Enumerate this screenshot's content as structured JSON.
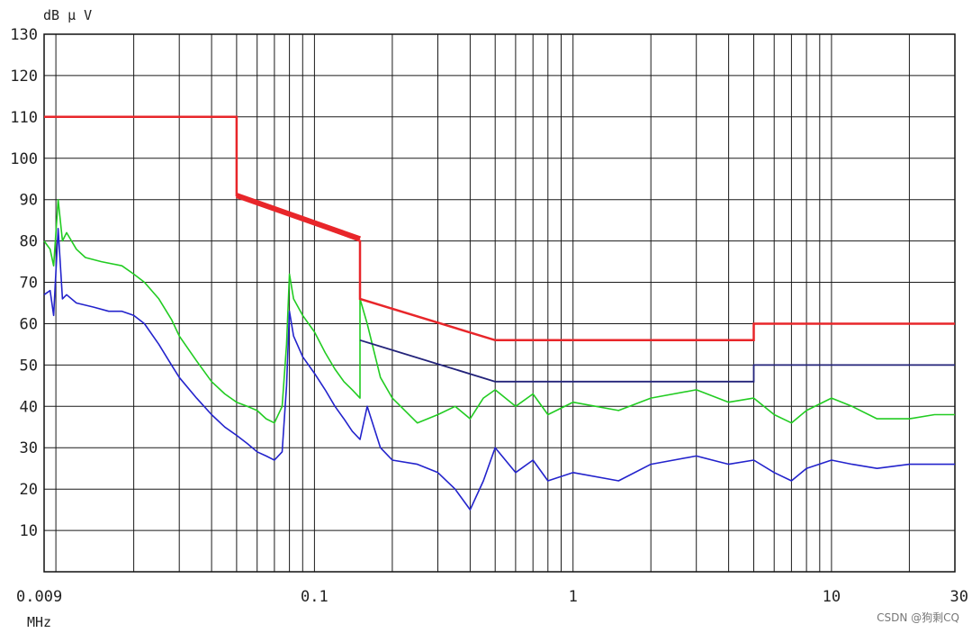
{
  "chart_data": {
    "type": "line",
    "title": "",
    "ylabel": "dB μ V",
    "xlabel": "MHz",
    "x_scale": "log",
    "xlim": [
      0.009,
      30
    ],
    "ylim": [
      0,
      130
    ],
    "y_ticks": [
      10,
      20,
      30,
      40,
      50,
      60,
      70,
      80,
      90,
      100,
      110,
      120,
      130
    ],
    "x_tick_labels": [
      {
        "value": 0.009,
        "label": "0.009"
      },
      {
        "value": 0.1,
        "label": "0.1"
      },
      {
        "value": 1,
        "label": "1"
      },
      {
        "value": 10,
        "label": "10"
      },
      {
        "value": 30,
        "label": "30"
      }
    ],
    "grid": true,
    "grid_x_values": [
      0.01,
      0.02,
      0.03,
      0.04,
      0.05,
      0.06,
      0.07,
      0.08,
      0.09,
      0.1,
      0.2,
      0.3,
      0.4,
      0.5,
      0.6,
      0.7,
      0.8,
      0.9,
      1,
      2,
      3,
      4,
      5,
      6,
      7,
      8,
      9,
      10,
      20,
      30
    ],
    "limit_lines": [
      {
        "color": "#e8262a",
        "width": 2.5,
        "points": [
          [
            0.009,
            110
          ],
          [
            0.05,
            110
          ],
          [
            0.05,
            91
          ],
          [
            0.15,
            80
          ],
          [
            0.15,
            66
          ],
          [
            0.5,
            56
          ],
          [
            5,
            56
          ],
          [
            5,
            60
          ],
          [
            30,
            60
          ]
        ]
      },
      {
        "color": "#e8262a",
        "width": 6,
        "points": [
          [
            0.05,
            91
          ],
          [
            0.15,
            80.5
          ]
        ]
      },
      {
        "color": "#23237a",
        "width": 1.8,
        "points": [
          [
            0.15,
            56
          ],
          [
            0.5,
            46
          ],
          [
            5,
            46
          ],
          [
            5,
            50
          ],
          [
            30,
            50
          ]
        ]
      }
    ],
    "series": [
      {
        "color": "#22cc22",
        "points": [
          [
            0.009,
            80
          ],
          [
            0.0095,
            78
          ],
          [
            0.0098,
            74
          ],
          [
            0.0102,
            90
          ],
          [
            0.0106,
            80
          ],
          [
            0.011,
            82
          ],
          [
            0.012,
            78
          ],
          [
            0.013,
            76
          ],
          [
            0.015,
            75
          ],
          [
            0.018,
            74
          ],
          [
            0.02,
            72
          ],
          [
            0.022,
            70
          ],
          [
            0.025,
            66
          ],
          [
            0.028,
            61
          ],
          [
            0.03,
            57
          ],
          [
            0.035,
            51
          ],
          [
            0.04,
            46
          ],
          [
            0.045,
            43
          ],
          [
            0.05,
            41
          ],
          [
            0.055,
            40
          ],
          [
            0.06,
            39
          ],
          [
            0.065,
            37
          ],
          [
            0.07,
            36
          ],
          [
            0.075,
            40
          ],
          [
            0.078,
            55
          ],
          [
            0.08,
            72
          ],
          [
            0.083,
            66
          ],
          [
            0.09,
            62
          ],
          [
            0.1,
            58
          ],
          [
            0.11,
            53
          ],
          [
            0.12,
            49
          ],
          [
            0.13,
            46
          ],
          [
            0.14,
            44
          ],
          [
            0.15,
            42
          ],
          [
            0.15,
            66
          ],
          [
            0.16,
            60
          ],
          [
            0.18,
            47
          ],
          [
            0.2,
            42
          ],
          [
            0.25,
            36
          ],
          [
            0.3,
            38
          ],
          [
            0.35,
            40
          ],
          [
            0.4,
            37
          ],
          [
            0.45,
            42
          ],
          [
            0.5,
            44
          ],
          [
            0.6,
            40
          ],
          [
            0.7,
            43
          ],
          [
            0.8,
            38
          ],
          [
            1,
            41
          ],
          [
            1.5,
            39
          ],
          [
            2,
            42
          ],
          [
            3,
            44
          ],
          [
            4,
            41
          ],
          [
            5,
            42
          ],
          [
            6,
            38
          ],
          [
            7,
            36
          ],
          [
            8,
            39
          ],
          [
            10,
            42
          ],
          [
            12,
            40
          ],
          [
            15,
            37
          ],
          [
            20,
            37
          ],
          [
            25,
            38
          ],
          [
            30,
            38
          ]
        ]
      },
      {
        "color": "#2323cc",
        "points": [
          [
            0.009,
            67
          ],
          [
            0.0095,
            68
          ],
          [
            0.0098,
            62
          ],
          [
            0.0102,
            83
          ],
          [
            0.0106,
            66
          ],
          [
            0.011,
            67
          ],
          [
            0.012,
            65
          ],
          [
            0.014,
            64
          ],
          [
            0.016,
            63
          ],
          [
            0.018,
            63
          ],
          [
            0.02,
            62
          ],
          [
            0.022,
            60
          ],
          [
            0.025,
            55
          ],
          [
            0.028,
            50
          ],
          [
            0.03,
            47
          ],
          [
            0.035,
            42
          ],
          [
            0.04,
            38
          ],
          [
            0.045,
            35
          ],
          [
            0.05,
            33
          ],
          [
            0.055,
            31
          ],
          [
            0.06,
            29
          ],
          [
            0.065,
            28
          ],
          [
            0.07,
            27
          ],
          [
            0.075,
            29
          ],
          [
            0.078,
            45
          ],
          [
            0.08,
            63
          ],
          [
            0.083,
            57
          ],
          [
            0.09,
            52
          ],
          [
            0.1,
            48
          ],
          [
            0.11,
            44
          ],
          [
            0.12,
            40
          ],
          [
            0.13,
            37
          ],
          [
            0.14,
            34
          ],
          [
            0.15,
            32
          ],
          [
            0.16,
            40
          ],
          [
            0.18,
            30
          ],
          [
            0.2,
            27
          ],
          [
            0.25,
            26
          ],
          [
            0.3,
            24
          ],
          [
            0.35,
            20
          ],
          [
            0.4,
            15
          ],
          [
            0.45,
            22
          ],
          [
            0.5,
            30
          ],
          [
            0.6,
            24
          ],
          [
            0.7,
            27
          ],
          [
            0.8,
            22
          ],
          [
            1,
            24
          ],
          [
            1.5,
            22
          ],
          [
            2,
            26
          ],
          [
            3,
            28
          ],
          [
            4,
            26
          ],
          [
            5,
            27
          ],
          [
            6,
            24
          ],
          [
            7,
            22
          ],
          [
            8,
            25
          ],
          [
            10,
            27
          ],
          [
            12,
            26
          ],
          [
            15,
            25
          ],
          [
            20,
            26
          ],
          [
            25,
            26
          ],
          [
            30,
            26
          ]
        ]
      }
    ]
  },
  "watermark": "CSDN @狗剩CQ"
}
